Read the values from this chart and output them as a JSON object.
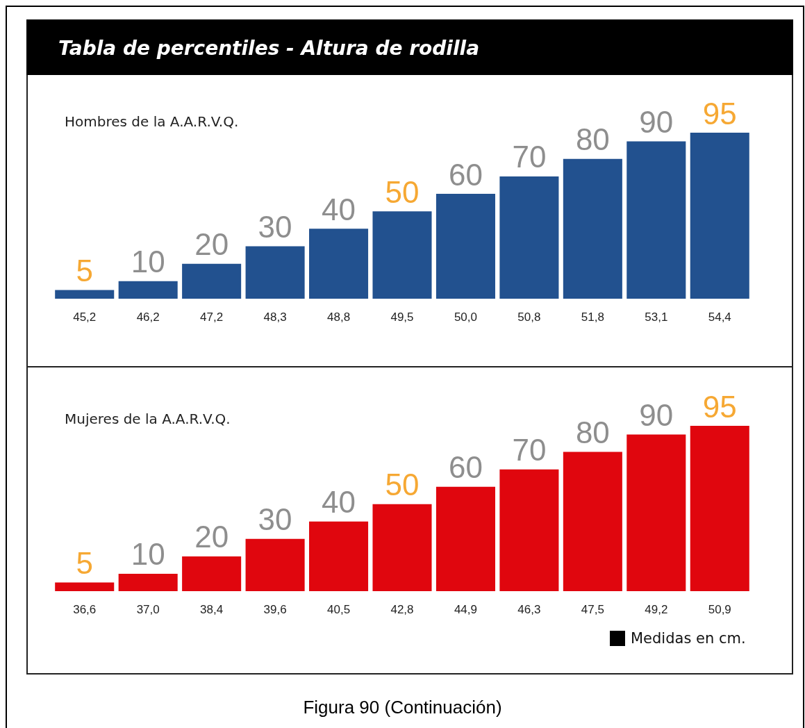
{
  "chart_data": [
    {
      "type": "bar",
      "title": "Tabla de percentiles - Altura de rodilla",
      "subtitle": "Hombres de la A.A.R.V.Q.",
      "color": "#22518f",
      "data_labels": true,
      "categories": [
        "45,2",
        "46,2",
        "47,2",
        "48,3",
        "48,8",
        "49,5",
        "50,0",
        "50,8",
        "51,8",
        "53,1",
        "54,4"
      ],
      "values": [
        5,
        10,
        20,
        30,
        40,
        50,
        60,
        70,
        80,
        90,
        95
      ]
    },
    {
      "type": "bar",
      "subtitle": "Mujeres de la A.A.R.V.Q.",
      "color": "#e0060e",
      "data_labels": true,
      "categories": [
        "36,6",
        "37,0",
        "38,4",
        "39,6",
        "40,5",
        "42,8",
        "44,9",
        "46,3",
        "47,5",
        "49,2",
        "50,9"
      ],
      "values": [
        5,
        10,
        20,
        30,
        40,
        50,
        60,
        70,
        80,
        90,
        95
      ],
      "annotations": [
        "Medidas en cm.",
        "Figura 90 (Continuación)"
      ]
    }
  ]
}
